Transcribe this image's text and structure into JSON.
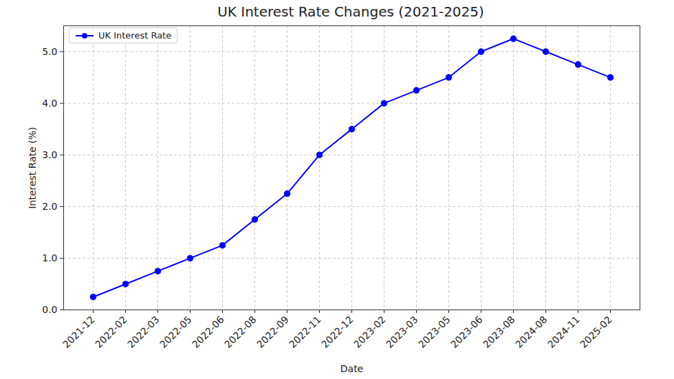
{
  "chart_data": {
    "type": "line",
    "title": "UK Interest Rate Changes (2021-2025)",
    "xlabel": "Date",
    "ylabel": "Interest Rate (%)",
    "categories": [
      "2021-12",
      "2022-02",
      "2022-03",
      "2022-05",
      "2022-06",
      "2022-08",
      "2022-09",
      "2022-11",
      "2022-12",
      "2023-02",
      "2023-03",
      "2023-05",
      "2023-06",
      "2023-08",
      "2024-08",
      "2024-11",
      "2025-02"
    ],
    "series": [
      {
        "name": "UK Interest Rate",
        "color": "#0000ff",
        "marker": "circle",
        "line_style": "solid",
        "values": [
          0.25,
          0.5,
          0.75,
          1.0,
          1.25,
          1.75,
          2.25,
          3.0,
          3.5,
          4.0,
          4.25,
          4.5,
          5.0,
          5.25,
          5.0,
          4.75,
          4.5
        ]
      }
    ],
    "ylim": [
      0,
      5.5
    ],
    "yticks": [
      0,
      1,
      2,
      3,
      4,
      5
    ],
    "grid": true,
    "legend": "upper left"
  }
}
